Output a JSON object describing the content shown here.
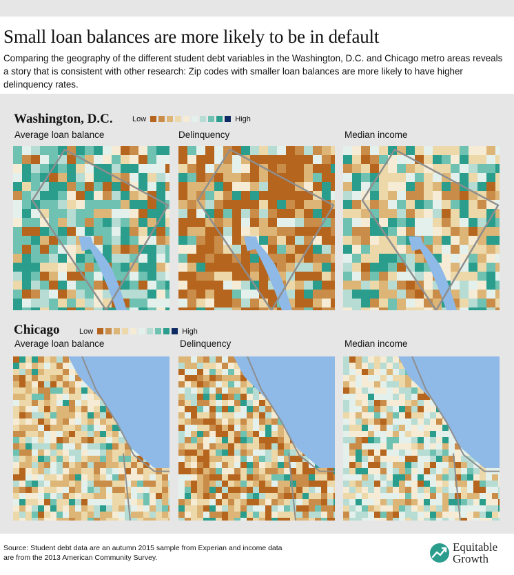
{
  "header": {
    "title": "Small loan balances are more likely to be in default",
    "subtitle": "Comparing the geography of the different student debt variables in the Washington, D.C. and Chicago metro areas reveals a story that is consistent with other research: Zip codes with smaller loan balances are more likely to have higher delinquency rates."
  },
  "legend": {
    "low_label": "Low",
    "high_label": "High",
    "colors": [
      "#b5651d",
      "#c98d49",
      "#ddb576",
      "#ecd8a9",
      "#f6ecd5",
      "#e4f0ec",
      "#b6dcd3",
      "#6fc1b1",
      "#2a9d8c",
      "#0e2a63"
    ]
  },
  "regions": [
    {
      "title": "Washington, D.C.",
      "maps": [
        {
          "label": "Average loan balance",
          "theme": "teal-dominant"
        },
        {
          "label": "Delinquency",
          "theme": "brown-dominant"
        },
        {
          "label": "Median income",
          "theme": "mixed"
        }
      ]
    },
    {
      "title": "Chicago",
      "maps": [
        {
          "label": "Average loan balance",
          "theme": "tan-mix"
        },
        {
          "label": "Delinquency",
          "theme": "brown-mix"
        },
        {
          "label": "Median income",
          "theme": "light-mix"
        }
      ]
    }
  ],
  "map_colors": {
    "water": "#8fb9e6",
    "boundary": "#8e8e8e"
  },
  "footer": {
    "source": "Source: Student debt data are an autumn 2015 sample from Experian and income data are from the 2013 American Community Survey.",
    "logo_line1": "Equitable",
    "logo_line2": "Growth"
  }
}
